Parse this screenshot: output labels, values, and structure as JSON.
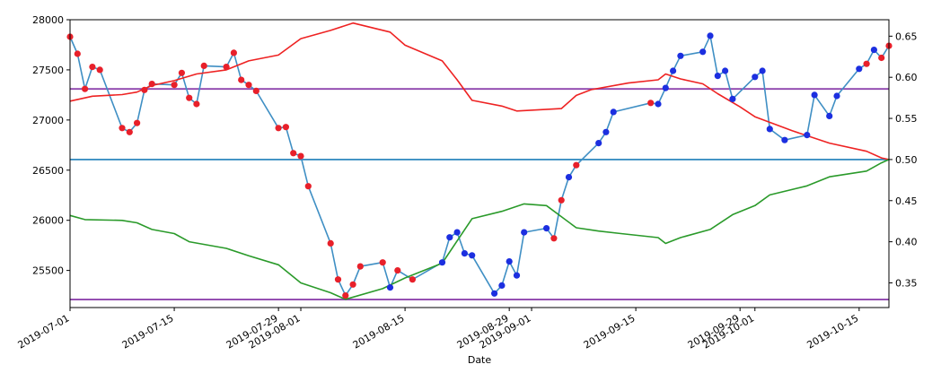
{
  "chart_data": {
    "type": "line",
    "xlabel": "Date",
    "x_range": [
      "2019-07-01",
      "2019-10-19"
    ],
    "y_left_range": [
      25130,
      28000
    ],
    "y_right_range": [
      0.32,
      0.67
    ],
    "grid": false,
    "left_ticks": [
      {
        "v": 25500,
        "label": "25500"
      },
      {
        "v": 26000,
        "label": "26000"
      },
      {
        "v": 26500,
        "label": "26500"
      },
      {
        "v": 27000,
        "label": "27000"
      },
      {
        "v": 27500,
        "label": "27500"
      },
      {
        "v": 28000,
        "label": "28000"
      }
    ],
    "right_ticks": [
      {
        "v": 0.35,
        "label": "0.35"
      },
      {
        "v": 0.4,
        "label": "0.40"
      },
      {
        "v": 0.45,
        "label": "0.45"
      },
      {
        "v": 0.5,
        "label": "0.50"
      },
      {
        "v": 0.55,
        "label": "0.55"
      },
      {
        "v": 0.6,
        "label": "0.60"
      },
      {
        "v": 0.65,
        "label": "0.65"
      }
    ],
    "x_ticks": [
      {
        "date": "2019-07-01",
        "label": "2019-07-01"
      },
      {
        "date": "2019-07-15",
        "label": "2019-07-15"
      },
      {
        "date": "2019-07-29",
        "label": "2019-07-29"
      },
      {
        "date": "2019-08-01",
        "label": "2019-08-01"
      },
      {
        "date": "2019-08-15",
        "label": "2019-08-15"
      },
      {
        "date": "2019-08-29",
        "label": "2019-08-29"
      },
      {
        "date": "2019-09-01",
        "label": "2019-09-01"
      },
      {
        "date": "2019-09-15",
        "label": "2019-09-15"
      },
      {
        "date": "2019-09-29",
        "label": "2019-09-29"
      },
      {
        "date": "2019-10-01",
        "label": "2019-10-01"
      },
      {
        "date": "2019-10-15",
        "label": "2019-10-15"
      }
    ],
    "hlines": [
      {
        "axis": "left",
        "value": 27310,
        "color": "#8e44ad"
      },
      {
        "axis": "left",
        "value": 25210,
        "color": "#8e44ad"
      },
      {
        "axis": "right",
        "value": 0.5,
        "color": "#3a8fc2"
      }
    ],
    "price_line_color": "#3f8fc4",
    "series": [
      {
        "axis": "left",
        "style": "line-markers",
        "points": [
          {
            "date": "2019-07-01",
            "y": 27830,
            "c": "red"
          },
          {
            "date": "2019-07-02",
            "y": 27660,
            "c": "red"
          },
          {
            "date": "2019-07-03",
            "y": 27310,
            "c": "red"
          },
          {
            "date": "2019-07-04",
            "y": 27530,
            "c": "red"
          },
          {
            "date": "2019-07-05",
            "y": 27500,
            "c": "red"
          },
          {
            "date": "2019-07-08",
            "y": 26920,
            "c": "red"
          },
          {
            "date": "2019-07-09",
            "y": 26880,
            "c": "red"
          },
          {
            "date": "2019-07-10",
            "y": 26970,
            "c": "red"
          },
          {
            "date": "2019-07-11",
            "y": 27300,
            "c": "red"
          },
          {
            "date": "2019-07-12",
            "y": 27360,
            "c": "red"
          },
          {
            "date": "2019-07-15",
            "y": 27350,
            "c": "red"
          },
          {
            "date": "2019-07-16",
            "y": 27470,
            "c": "red"
          },
          {
            "date": "2019-07-17",
            "y": 27220,
            "c": "red"
          },
          {
            "date": "2019-07-18",
            "y": 27160,
            "c": "red"
          },
          {
            "date": "2019-07-19",
            "y": 27540,
            "c": "red"
          },
          {
            "date": "2019-07-22",
            "y": 27530,
            "c": "red"
          },
          {
            "date": "2019-07-23",
            "y": 27670,
            "c": "red"
          },
          {
            "date": "2019-07-24",
            "y": 27400,
            "c": "red"
          },
          {
            "date": "2019-07-25",
            "y": 27350,
            "c": "red"
          },
          {
            "date": "2019-07-26",
            "y": 27290,
            "c": "red"
          },
          {
            "date": "2019-07-29",
            "y": 26920,
            "c": "red"
          },
          {
            "date": "2019-07-30",
            "y": 26930,
            "c": "red"
          },
          {
            "date": "2019-07-31",
            "y": 26670,
            "c": "red"
          },
          {
            "date": "2019-08-01",
            "y": 26640,
            "c": "red"
          },
          {
            "date": "2019-08-02",
            "y": 26340,
            "c": "red"
          },
          {
            "date": "2019-08-05",
            "y": 25770,
            "c": "red"
          },
          {
            "date": "2019-08-06",
            "y": 25410,
            "c": "red"
          },
          {
            "date": "2019-08-07",
            "y": 25250,
            "c": "red"
          },
          {
            "date": "2019-08-08",
            "y": 25360,
            "c": "red"
          },
          {
            "date": "2019-08-09",
            "y": 25540,
            "c": "red"
          },
          {
            "date": "2019-08-12",
            "y": 25580,
            "c": "red"
          },
          {
            "date": "2019-08-13",
            "y": 25330,
            "c": "blue"
          },
          {
            "date": "2019-08-14",
            "y": 25500,
            "c": "red"
          },
          {
            "date": "2019-08-16",
            "y": 25410,
            "c": "red"
          },
          {
            "date": "2019-08-20",
            "y": 25580,
            "c": "blue"
          },
          {
            "date": "2019-08-21",
            "y": 25830,
            "c": "blue"
          },
          {
            "date": "2019-08-22",
            "y": 25880,
            "c": "blue"
          },
          {
            "date": "2019-08-23",
            "y": 25670,
            "c": "blue"
          },
          {
            "date": "2019-08-24",
            "y": 25650,
            "c": "blue"
          },
          {
            "date": "2019-08-27",
            "y": 25270,
            "c": "blue"
          },
          {
            "date": "2019-08-28",
            "y": 25350,
            "c": "blue"
          },
          {
            "date": "2019-08-29",
            "y": 25590,
            "c": "blue"
          },
          {
            "date": "2019-08-30",
            "y": 25450,
            "c": "blue"
          },
          {
            "date": "2019-08-31",
            "y": 25880,
            "c": "blue"
          },
          {
            "date": "2019-09-03",
            "y": 25920,
            "c": "blue"
          },
          {
            "date": "2019-09-04",
            "y": 25820,
            "c": "red"
          },
          {
            "date": "2019-09-05",
            "y": 26200,
            "c": "red"
          },
          {
            "date": "2019-09-06",
            "y": 26430,
            "c": "blue"
          },
          {
            "date": "2019-09-07",
            "y": 26550,
            "c": "red"
          },
          {
            "date": "2019-09-10",
            "y": 26770,
            "c": "blue"
          },
          {
            "date": "2019-09-11",
            "y": 26880,
            "c": "blue"
          },
          {
            "date": "2019-09-12",
            "y": 27080,
            "c": "blue"
          },
          {
            "date": "2019-09-17",
            "y": 27170,
            "c": "red"
          },
          {
            "date": "2019-09-18",
            "y": 27160,
            "c": "blue"
          },
          {
            "date": "2019-09-19",
            "y": 27320,
            "c": "blue"
          },
          {
            "date": "2019-09-20",
            "y": 27490,
            "c": "blue"
          },
          {
            "date": "2019-09-21",
            "y": 27640,
            "c": "blue"
          },
          {
            "date": "2019-09-24",
            "y": 27680,
            "c": "blue"
          },
          {
            "date": "2019-09-25",
            "y": 27840,
            "c": "blue"
          },
          {
            "date": "2019-09-26",
            "y": 27440,
            "c": "blue"
          },
          {
            "date": "2019-09-27",
            "y": 27490,
            "c": "blue"
          },
          {
            "date": "2019-09-28",
            "y": 27210,
            "c": "blue"
          },
          {
            "date": "2019-10-01",
            "y": 27430,
            "c": "blue"
          },
          {
            "date": "2019-10-02",
            "y": 27490,
            "c": "blue"
          },
          {
            "date": "2019-10-03",
            "y": 26910,
            "c": "blue"
          },
          {
            "date": "2019-10-05",
            "y": 26800,
            "c": "blue"
          },
          {
            "date": "2019-10-08",
            "y": 26850,
            "c": "blue"
          },
          {
            "date": "2019-10-09",
            "y": 27250,
            "c": "blue"
          },
          {
            "date": "2019-10-11",
            "y": 27040,
            "c": "blue"
          },
          {
            "date": "2019-10-12",
            "y": 27240,
            "c": "blue"
          },
          {
            "date": "2019-10-15",
            "y": 27510,
            "c": "blue"
          },
          {
            "date": "2019-10-16",
            "y": 27560,
            "c": "red"
          },
          {
            "date": "2019-10-17",
            "y": 27700,
            "c": "blue"
          },
          {
            "date": "2019-10-18",
            "y": 27620,
            "c": "red"
          },
          {
            "date": "2019-10-19",
            "y": 27740,
            "c": "red"
          }
        ]
      },
      {
        "axis": "right",
        "style": "line",
        "color": "#ee2222",
        "points": [
          {
            "date": "2019-07-01",
            "y": 0.571
          },
          {
            "date": "2019-07-04",
            "y": 0.577
          },
          {
            "date": "2019-07-08",
            "y": 0.579
          },
          {
            "date": "2019-07-10",
            "y": 0.582
          },
          {
            "date": "2019-07-12",
            "y": 0.59
          },
          {
            "date": "2019-07-15",
            "y": 0.596
          },
          {
            "date": "2019-07-18",
            "y": 0.604
          },
          {
            "date": "2019-07-22",
            "y": 0.609
          },
          {
            "date": "2019-07-25",
            "y": 0.62
          },
          {
            "date": "2019-07-29",
            "y": 0.627
          },
          {
            "date": "2019-08-01",
            "y": 0.647
          },
          {
            "date": "2019-08-05",
            "y": 0.657
          },
          {
            "date": "2019-08-08",
            "y": 0.666
          },
          {
            "date": "2019-08-13",
            "y": 0.655
          },
          {
            "date": "2019-08-15",
            "y": 0.639
          },
          {
            "date": "2019-08-20",
            "y": 0.62
          },
          {
            "date": "2019-08-22",
            "y": 0.597
          },
          {
            "date": "2019-08-24",
            "y": 0.572
          },
          {
            "date": "2019-08-28",
            "y": 0.565
          },
          {
            "date": "2019-08-30",
            "y": 0.559
          },
          {
            "date": "2019-09-05",
            "y": 0.562
          },
          {
            "date": "2019-09-07",
            "y": 0.578
          },
          {
            "date": "2019-09-09",
            "y": 0.585
          },
          {
            "date": "2019-09-14",
            "y": 0.593
          },
          {
            "date": "2019-09-18",
            "y": 0.597
          },
          {
            "date": "2019-09-19",
            "y": 0.604
          },
          {
            "date": "2019-09-21",
            "y": 0.598
          },
          {
            "date": "2019-09-24",
            "y": 0.592
          },
          {
            "date": "2019-09-26",
            "y": 0.58
          },
          {
            "date": "2019-09-29",
            "y": 0.564
          },
          {
            "date": "2019-10-01",
            "y": 0.552
          },
          {
            "date": "2019-10-06",
            "y": 0.535
          },
          {
            "date": "2019-10-11",
            "y": 0.52
          },
          {
            "date": "2019-10-16",
            "y": 0.51
          },
          {
            "date": "2019-10-18",
            "y": 0.502
          },
          {
            "date": "2019-10-19",
            "y": 0.5
          }
        ]
      },
      {
        "axis": "right",
        "style": "line",
        "color": "#2a9a2a",
        "points": [
          {
            "date": "2019-07-01",
            "y": 0.432
          },
          {
            "date": "2019-07-03",
            "y": 0.427
          },
          {
            "date": "2019-07-08",
            "y": 0.426
          },
          {
            "date": "2019-07-10",
            "y": 0.423
          },
          {
            "date": "2019-07-12",
            "y": 0.415
          },
          {
            "date": "2019-07-15",
            "y": 0.41
          },
          {
            "date": "2019-07-17",
            "y": 0.4
          },
          {
            "date": "2019-07-22",
            "y": 0.392
          },
          {
            "date": "2019-07-25",
            "y": 0.383
          },
          {
            "date": "2019-07-29",
            "y": 0.372
          },
          {
            "date": "2019-08-01",
            "y": 0.35
          },
          {
            "date": "2019-08-05",
            "y": 0.338
          },
          {
            "date": "2019-08-07",
            "y": 0.33
          },
          {
            "date": "2019-08-12",
            "y": 0.343
          },
          {
            "date": "2019-08-15",
            "y": 0.356
          },
          {
            "date": "2019-08-20",
            "y": 0.374
          },
          {
            "date": "2019-08-24",
            "y": 0.428
          },
          {
            "date": "2019-08-28",
            "y": 0.437
          },
          {
            "date": "2019-08-31",
            "y": 0.446
          },
          {
            "date": "2019-09-03",
            "y": 0.444
          },
          {
            "date": "2019-09-07",
            "y": 0.417
          },
          {
            "date": "2019-09-10",
            "y": 0.413
          },
          {
            "date": "2019-09-13",
            "y": 0.41
          },
          {
            "date": "2019-09-18",
            "y": 0.405
          },
          {
            "date": "2019-09-19",
            "y": 0.398
          },
          {
            "date": "2019-09-21",
            "y": 0.405
          },
          {
            "date": "2019-09-25",
            "y": 0.415
          },
          {
            "date": "2019-09-28",
            "y": 0.433
          },
          {
            "date": "2019-10-01",
            "y": 0.444
          },
          {
            "date": "2019-10-03",
            "y": 0.457
          },
          {
            "date": "2019-10-08",
            "y": 0.468
          },
          {
            "date": "2019-10-11",
            "y": 0.479
          },
          {
            "date": "2019-10-16",
            "y": 0.486
          },
          {
            "date": "2019-10-18",
            "y": 0.496
          },
          {
            "date": "2019-10-19",
            "y": 0.5
          }
        ]
      }
    ]
  }
}
